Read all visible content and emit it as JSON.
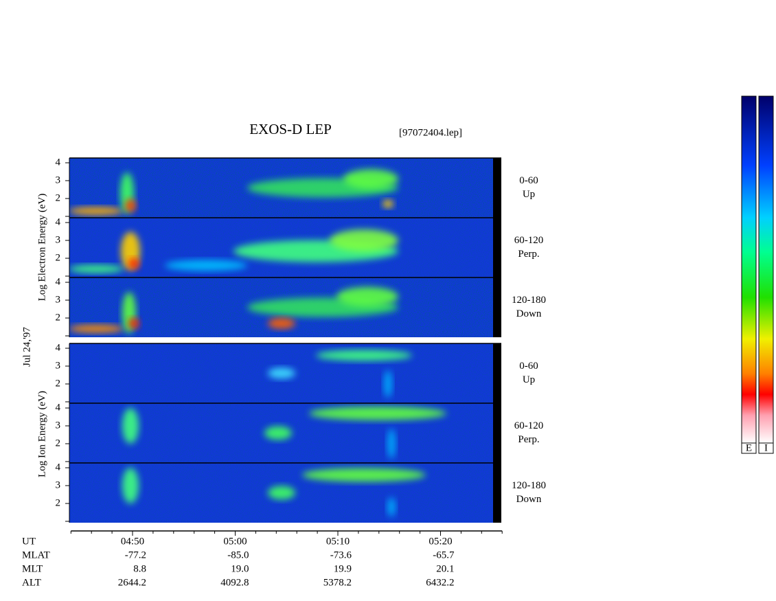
{
  "title": "EXOS-D LEP",
  "file": "[97072404.lep]",
  "date": "Jul 24,'97",
  "electron": {
    "axis_label": "Log Electron Energy (eV)",
    "panels": [
      {
        "angle": "0-60",
        "direction": "Up"
      },
      {
        "angle": "60-120",
        "direction": "Perp."
      },
      {
        "angle": "120-180",
        "direction": "Down"
      }
    ]
  },
  "ion": {
    "axis_label": "Log Ion Energy (eV)",
    "panels": [
      {
        "angle": "0-60",
        "direction": "Up"
      },
      {
        "angle": "60-120",
        "direction": "Perp."
      },
      {
        "angle": "120-180",
        "direction": "Down"
      }
    ]
  },
  "ylim": [
    1,
    4
  ],
  "yticks": [
    2,
    3,
    4
  ],
  "time_axis": {
    "lim": [
      284,
      326
    ],
    "ticks": [
      {
        "value": 290,
        "label": "04:50"
      },
      {
        "value": 300,
        "label": "05:00"
      },
      {
        "value": 310,
        "label": "05:10"
      },
      {
        "value": 320,
        "label": "05:20"
      }
    ]
  },
  "table": {
    "rows": [
      {
        "label": "UT"
      },
      {
        "label": "MLAT",
        "values": [
          "-77.2",
          "-85.0",
          "-73.6",
          "-65.7"
        ]
      },
      {
        "label": "MLT",
        "values": [
          "8.8",
          "19.0",
          "19.9",
          "20.1"
        ]
      },
      {
        "label": "ALT",
        "values": [
          "2644.2",
          "4092.8",
          "5378.2",
          "6432.2"
        ]
      }
    ]
  },
  "colorbars": [
    "E",
    "I"
  ]
}
